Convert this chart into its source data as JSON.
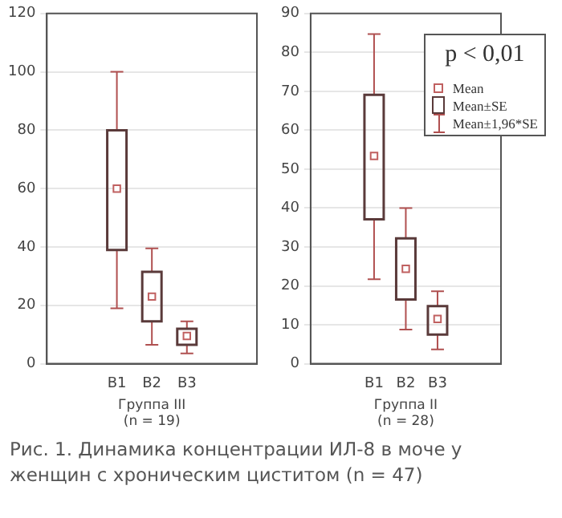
{
  "chart_data": [
    {
      "type": "box",
      "categories": [
        "B1",
        "B2",
        "B3"
      ],
      "xlabel": "Группа III\n(n = 19)",
      "ylim": [
        0,
        120
      ],
      "yticks": [
        0,
        20,
        40,
        60,
        80,
        100,
        120
      ],
      "grid": "y",
      "marker": "square",
      "series": [
        {
          "color": "#5a3a3a",
          "boxes": [
            {
              "low": 19,
              "q1": 39,
              "q3": 80,
              "high": 100,
              "mean": 60
            },
            {
              "low": 6.5,
              "q1": 14.5,
              "q3": 31.5,
              "high": 39.5,
              "mean": 23
            },
            {
              "low": 3.5,
              "q1": 6.5,
              "q3": 12,
              "high": 14.5,
              "mean": 9.5
            }
          ]
        }
      ],
      "annotations": [
        "Рис. 1. Динамика концентрации ИЛ-8 в моче у женщин с хроническим циститом (n = 47)"
      ]
    },
    {
      "type": "box",
      "categories": [
        "B1",
        "B2",
        "B3"
      ],
      "xlabel": "Группа II\n(n = 28)",
      "ylim": [
        0,
        90
      ],
      "yticks": [
        0,
        10,
        20,
        30,
        40,
        50,
        60,
        70,
        80,
        90
      ],
      "grid": "y",
      "marker": "square",
      "legend_title": "p < 0,01",
      "series": [
        {
          "color": "#5a3a3a",
          "boxes": [
            {
              "low": 21.7,
              "q1": 37.1,
              "q3": 69.1,
              "high": 84.7,
              "mean": 53.4
            },
            {
              "low": 8.8,
              "q1": 16.5,
              "q3": 32.2,
              "high": 40,
              "mean": 24.4
            },
            {
              "low": 3.7,
              "q1": 7.5,
              "q3": 14.8,
              "high": 18.6,
              "mean": 11.5
            }
          ]
        }
      ],
      "annotations": [
        "Mean",
        "Mean±SE",
        "Mean±1,96*SE"
      ]
    }
  ]
}
